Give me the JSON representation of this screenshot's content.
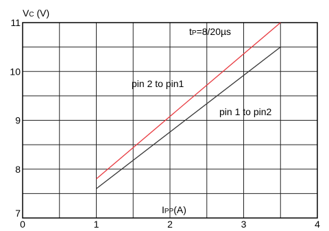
{
  "chart_data": {
    "type": "line",
    "ylabel": {
      "main": "V",
      "sub": "C",
      "rest": " (V)"
    },
    "xlabel": {
      "main": "I",
      "sub": "PP",
      "rest": "(A)"
    },
    "annotation": {
      "main": "t",
      "sub": "P",
      "rest": "=8/20µs"
    },
    "xlim": [
      0,
      4
    ],
    "ylim": [
      7,
      11
    ],
    "x_ticks": [
      0,
      1,
      2,
      3,
      4
    ],
    "y_ticks": [
      7,
      8,
      9,
      10,
      11
    ],
    "x_tick_labels": [
      "0",
      "1",
      "2",
      "3",
      "4"
    ],
    "y_tick_labels": [
      "7",
      "8",
      "9",
      "10",
      "11"
    ],
    "x_minor_step": 0.5,
    "y_minor_step": 0.5,
    "grid": true,
    "series": [
      {
        "name": "pin 2 to pin1",
        "color": "#e8393f",
        "x": [
          1,
          3.5
        ],
        "y": [
          7.8,
          11.0
        ]
      },
      {
        "name": "pin 1 to pin2",
        "color": "#333333",
        "x": [
          1,
          3.5
        ],
        "y": [
          7.6,
          10.5
        ]
      }
    ]
  }
}
